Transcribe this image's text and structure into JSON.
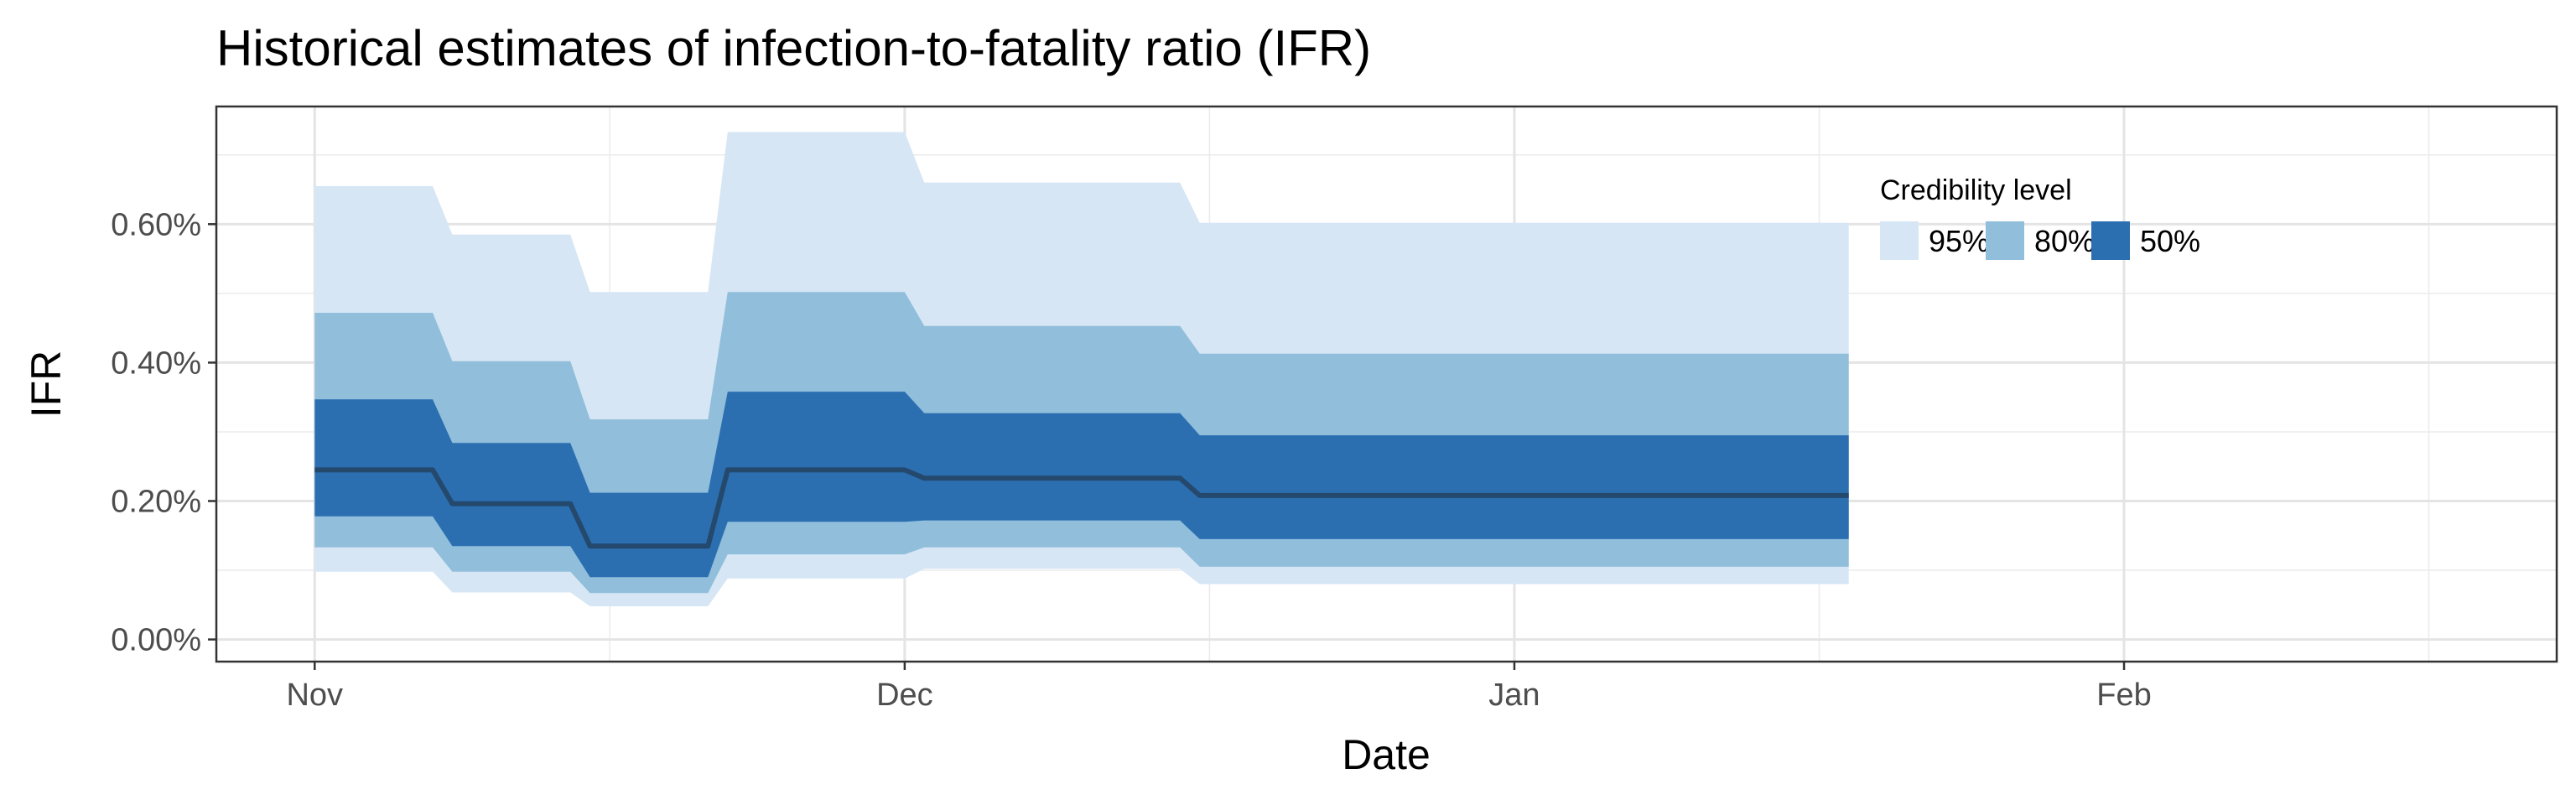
{
  "chart_data": {
    "type": "area",
    "title": "Historical estimates of infection-to-fatality ratio (IFR)",
    "xlabel": "Date",
    "ylabel": "IFR",
    "x_ticks": [
      {
        "label": "Nov",
        "date": "2020-11-01"
      },
      {
        "label": "Dec",
        "date": "2020-12-01"
      },
      {
        "label": "Jan",
        "date": "2021-01-01"
      },
      {
        "label": "Feb",
        "date": "2021-02-01"
      }
    ],
    "xlim": [
      "2020-10-27",
      "2021-02-23"
    ],
    "y_ticks": [
      0,
      0.2,
      0.4,
      0.6
    ],
    "y_tick_labels": [
      "0.00%",
      "0.20%",
      "0.40%",
      "0.60%"
    ],
    "ylim": [
      -0.032,
      0.77
    ],
    "grid": true,
    "legend": {
      "title": "Credibility level",
      "position": "top-right",
      "entries": [
        {
          "label": "95%",
          "color": "#d6e6f5"
        },
        {
          "label": "80%",
          "color": "#90bedb"
        },
        {
          "label": "50%",
          "color": "#2b6fb1"
        }
      ]
    },
    "median_color": "#25496d",
    "steps": [
      {
        "start": "2020-11-01",
        "end": "2020-11-07",
        "median": 0.245,
        "ci50": [
          0.178,
          0.347
        ],
        "ci80": [
          0.133,
          0.472
        ],
        "ci95": [
          0.098,
          0.655
        ]
      },
      {
        "start": "2020-11-08",
        "end": "2020-11-14",
        "median": 0.196,
        "ci50": [
          0.135,
          0.284
        ],
        "ci80": [
          0.098,
          0.402
        ],
        "ci95": [
          0.068,
          0.585
        ]
      },
      {
        "start": "2020-11-15",
        "end": "2020-11-21",
        "median": 0.135,
        "ci50": [
          0.09,
          0.212
        ],
        "ci80": [
          0.067,
          0.318
        ],
        "ci95": [
          0.048,
          0.502
        ]
      },
      {
        "start": "2020-11-22",
        "end": "2020-12-01",
        "median": 0.245,
        "ci50": [
          0.17,
          0.358
        ],
        "ci80": [
          0.123,
          0.502
        ],
        "ci95": [
          0.088,
          0.733
        ]
      },
      {
        "start": "2020-12-02",
        "end": "2020-12-15",
        "median": 0.233,
        "ci50": [
          0.172,
          0.327
        ],
        "ci80": [
          0.133,
          0.453
        ],
        "ci95": [
          0.102,
          0.66
        ]
      },
      {
        "start": "2020-12-16",
        "end": "2021-01-18",
        "median": 0.208,
        "ci50": [
          0.145,
          0.295
        ],
        "ci80": [
          0.105,
          0.413
        ],
        "ci95": [
          0.08,
          0.602
        ]
      }
    ]
  }
}
